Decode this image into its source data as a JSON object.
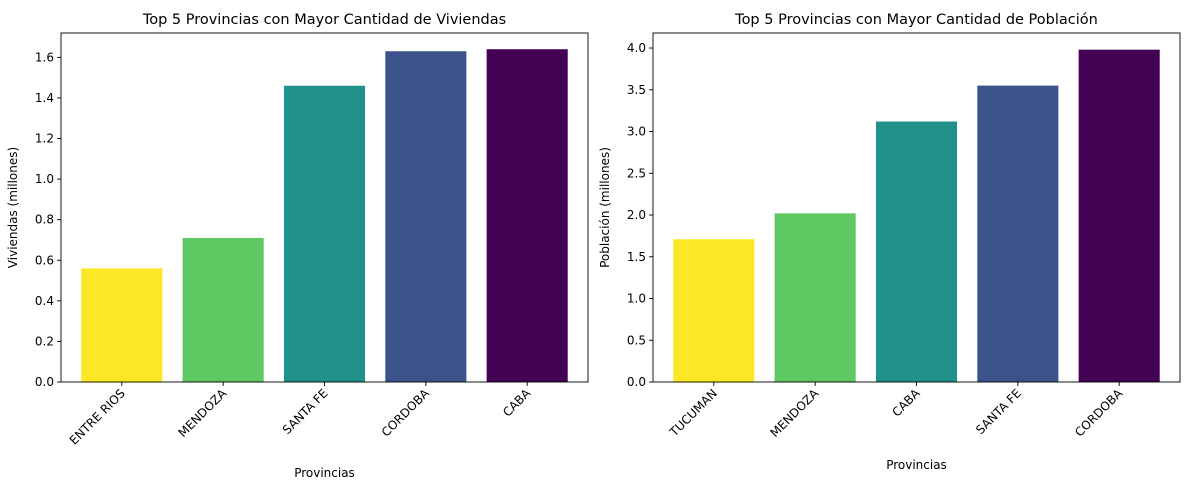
{
  "chart_data": [
    {
      "type": "bar",
      "title": "Top 5 Provincias con Mayor Cantidad de Viviendas",
      "xlabel": "Provincias",
      "ylabel": "Viviendas (millones)",
      "categories": [
        "ENTRE RIOS",
        "MENDOZA",
        "SANTA FE",
        "CORDOBA",
        "CABA"
      ],
      "values": [
        0.56,
        0.71,
        1.46,
        1.63,
        1.64
      ],
      "colors": [
        "#fde725",
        "#5ec962",
        "#21918c",
        "#3b528b",
        "#440154"
      ],
      "ylim": [
        0,
        1.72
      ],
      "yticks": [
        0.0,
        0.2,
        0.4,
        0.6,
        0.8,
        1.0,
        1.2,
        1.4,
        1.6
      ],
      "ytick_labels": [
        "0.0",
        "0.2",
        "0.4",
        "0.6",
        "0.8",
        "1.0",
        "1.2",
        "1.4",
        "1.6"
      ],
      "grid": false
    },
    {
      "type": "bar",
      "title": "Top 5 Provincias con Mayor Cantidad de Población",
      "xlabel": "Provincias",
      "ylabel": "Población (millones)",
      "categories": [
        "TUCUMAN",
        "MENDOZA",
        "CABA",
        "SANTA FE",
        "CORDOBA"
      ],
      "values": [
        1.71,
        2.02,
        3.12,
        3.55,
        3.98
      ],
      "colors": [
        "#fde725",
        "#5ec962",
        "#21918c",
        "#3b528b",
        "#440154"
      ],
      "ylim": [
        0,
        4.18
      ],
      "yticks": [
        0.0,
        0.5,
        1.0,
        1.5,
        2.0,
        2.5,
        3.0,
        3.5,
        4.0
      ],
      "ytick_labels": [
        "0.0",
        "0.5",
        "1.0",
        "1.5",
        "2.0",
        "2.5",
        "3.0",
        "3.5",
        "4.0"
      ],
      "grid": false
    }
  ]
}
